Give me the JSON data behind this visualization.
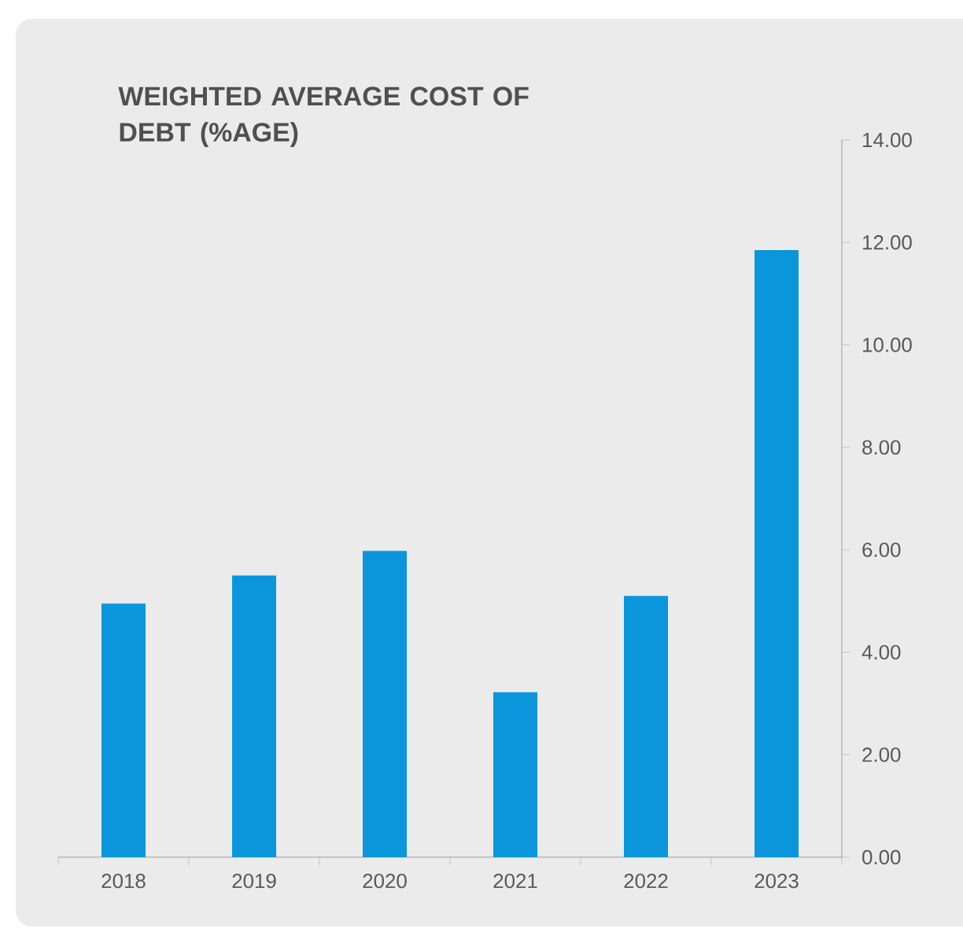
{
  "chart_data": {
    "type": "bar",
    "title": "WEIGHTED AVERAGE COST OF DEBT (%AGE)",
    "categories": [
      "2018",
      "2019",
      "2020",
      "2021",
      "2022",
      "2023"
    ],
    "values": [
      4.95,
      5.5,
      5.98,
      3.22,
      5.1,
      11.85
    ],
    "color": "#0b96dc",
    "ylim": [
      0,
      14
    ],
    "yticks": [
      {
        "value": 0,
        "label": "0.00"
      },
      {
        "value": 2,
        "label": "2.00"
      },
      {
        "value": 4,
        "label": "4.00"
      },
      {
        "value": 6,
        "label": "6.00"
      },
      {
        "value": 8,
        "label": "8.00"
      },
      {
        "value": 10,
        "label": "10.00"
      },
      {
        "value": 12,
        "label": "12.00"
      },
      {
        "value": 14,
        "label": "14.00"
      }
    ],
    "grid": false
  }
}
